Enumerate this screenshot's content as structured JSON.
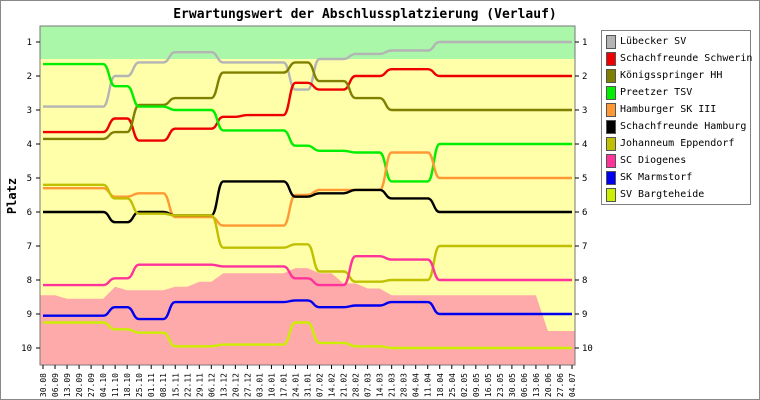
{
  "chart_data": {
    "type": "line",
    "title": "Erwartungswert der Abschlussplatzierung (Verlauf)",
    "ylabel": "Platz",
    "xlabel": "",
    "ylim": [
      1,
      10
    ],
    "y_inverted": true,
    "y_ticks": [
      "1",
      "2",
      "3",
      "4",
      "5",
      "6",
      "7",
      "8",
      "9",
      "10"
    ],
    "x": [
      "30.08",
      "06.09",
      "13.09",
      "20.09",
      "27.09",
      "04.10",
      "11.10",
      "18.10",
      "25.10",
      "01.11",
      "08.11",
      "15.11",
      "22.11",
      "29.11",
      "06.12",
      "13.12",
      "20.12",
      "27.12",
      "03.01",
      "10.01",
      "17.01",
      "24.01",
      "31.01",
      "07.02",
      "14.02",
      "21.02",
      "28.02",
      "07.03",
      "14.03",
      "21.03",
      "28.03",
      "04.04",
      "11.04",
      "18.04",
      "25.04",
      "02.05",
      "09.05",
      "16.05",
      "23.05",
      "30.05",
      "06.06",
      "13.06",
      "20.06",
      "27.06",
      "04.07"
    ],
    "bands": {
      "green_zone": {
        "from": 1,
        "to": 1.5,
        "color": "#aaf7aa"
      },
      "yellow_zone_color": "#ffffaa",
      "red_zone_color": "#ffaaaa",
      "red_zone_top": [
        8.45,
        8.45,
        8.55,
        8.55,
        8.55,
        8.55,
        8.2,
        8.3,
        8.3,
        8.3,
        8.3,
        8.2,
        8.2,
        8.05,
        8.05,
        7.8,
        7.8,
        7.8,
        7.8,
        7.8,
        7.8,
        7.65,
        7.65,
        7.8,
        7.8,
        8.1,
        8.1,
        8.25,
        8.25,
        8.45,
        8.45,
        8.45,
        8.45,
        8.45,
        8.45,
        8.45,
        8.45,
        8.45,
        8.45,
        8.45,
        8.45,
        8.45,
        9.5,
        9.5,
        9.5
      ]
    },
    "series": [
      {
        "name": "Lübecker SV",
        "color": "#b4b4b4",
        "values": [
          2.9,
          2.9,
          2.9,
          2.9,
          2.9,
          2.9,
          2.0,
          2.0,
          1.6,
          1.6,
          1.6,
          1.3,
          1.3,
          1.3,
          1.3,
          1.6,
          1.6,
          1.6,
          1.6,
          1.6,
          1.6,
          2.4,
          2.4,
          1.5,
          1.5,
          1.5,
          1.35,
          1.35,
          1.35,
          1.25,
          1.25,
          1.25,
          1.25,
          1.0,
          1.0,
          1.0,
          1.0,
          1.0,
          1.0,
          1.0,
          1.0,
          1.0,
          1.0,
          1.0,
          1.0
        ]
      },
      {
        "name": "Schachfreunde Schwerin",
        "color": "#ee0000",
        "values": [
          3.65,
          3.65,
          3.65,
          3.65,
          3.65,
          3.65,
          3.25,
          3.25,
          3.9,
          3.9,
          3.9,
          3.55,
          3.55,
          3.55,
          3.55,
          3.2,
          3.2,
          3.15,
          3.15,
          3.15,
          3.15,
          2.2,
          2.2,
          2.4,
          2.4,
          2.4,
          2.0,
          2.0,
          2.0,
          1.8,
          1.8,
          1.8,
          1.8,
          2.0,
          2.0,
          2.0,
          2.0,
          2.0,
          2.0,
          2.0,
          2.0,
          2.0,
          2.0,
          2.0,
          2.0
        ]
      },
      {
        "name": "Königsspringer HH",
        "color": "#808000",
        "values": [
          3.85,
          3.85,
          3.85,
          3.85,
          3.85,
          3.85,
          3.65,
          3.65,
          2.85,
          2.85,
          2.85,
          2.65,
          2.65,
          2.65,
          2.65,
          1.9,
          1.9,
          1.9,
          1.9,
          1.9,
          1.9,
          1.6,
          1.6,
          2.15,
          2.15,
          2.15,
          2.65,
          2.65,
          2.65,
          3.0,
          3.0,
          3.0,
          3.0,
          3.0,
          3.0,
          3.0,
          3.0,
          3.0,
          3.0,
          3.0,
          3.0,
          3.0,
          3.0,
          3.0,
          3.0
        ]
      },
      {
        "name": "Preetzer TSV",
        "color": "#00ee00",
        "values": [
          1.65,
          1.65,
          1.65,
          1.65,
          1.65,
          1.65,
          2.3,
          2.3,
          2.9,
          2.9,
          2.9,
          3.0,
          3.0,
          3.0,
          3.0,
          3.6,
          3.6,
          3.6,
          3.6,
          3.6,
          3.6,
          4.05,
          4.05,
          4.2,
          4.2,
          4.2,
          4.25,
          4.25,
          4.25,
          5.1,
          5.1,
          5.1,
          5.1,
          4.0,
          4.0,
          4.0,
          4.0,
          4.0,
          4.0,
          4.0,
          4.0,
          4.0,
          4.0,
          4.0,
          4.0
        ]
      },
      {
        "name": "Hamburger SK III",
        "color": "#ff9933",
        "values": [
          5.3,
          5.3,
          5.3,
          5.3,
          5.3,
          5.3,
          5.55,
          5.55,
          5.45,
          5.45,
          5.45,
          6.15,
          6.15,
          6.15,
          6.15,
          6.4,
          6.4,
          6.4,
          6.4,
          6.4,
          6.4,
          5.5,
          5.5,
          5.35,
          5.35,
          5.35,
          5.35,
          5.35,
          5.35,
          4.25,
          4.25,
          4.25,
          4.25,
          5.0,
          5.0,
          5.0,
          5.0,
          5.0,
          5.0,
          5.0,
          5.0,
          5.0,
          5.0,
          5.0,
          5.0
        ]
      },
      {
        "name": "Schachfreunde Hamburg",
        "color": "#000000",
        "values": [
          6.0,
          6.0,
          6.0,
          6.0,
          6.0,
          6.0,
          6.3,
          6.3,
          6.0,
          6.0,
          6.0,
          6.1,
          6.1,
          6.1,
          6.1,
          5.1,
          5.1,
          5.1,
          5.1,
          5.1,
          5.1,
          5.55,
          5.55,
          5.45,
          5.45,
          5.45,
          5.35,
          5.35,
          5.35,
          5.6,
          5.6,
          5.6,
          5.6,
          6.0,
          6.0,
          6.0,
          6.0,
          6.0,
          6.0,
          6.0,
          6.0,
          6.0,
          6.0,
          6.0,
          6.0
        ]
      },
      {
        "name": "Johanneum Eppendorf",
        "color": "#c0c000",
        "values": [
          5.2,
          5.2,
          5.2,
          5.2,
          5.2,
          5.2,
          5.6,
          5.6,
          6.05,
          6.05,
          6.05,
          6.1,
          6.1,
          6.1,
          6.1,
          7.05,
          7.05,
          7.05,
          7.05,
          7.05,
          7.05,
          6.95,
          6.95,
          7.75,
          7.75,
          7.75,
          8.05,
          8.05,
          8.05,
          8.0,
          8.0,
          8.0,
          8.0,
          7.0,
          7.0,
          7.0,
          7.0,
          7.0,
          7.0,
          7.0,
          7.0,
          7.0,
          7.0,
          7.0,
          7.0
        ]
      },
      {
        "name": "SC Diogenes",
        "color": "#ff3399",
        "values": [
          8.15,
          8.15,
          8.15,
          8.15,
          8.15,
          8.15,
          7.95,
          7.95,
          7.55,
          7.55,
          7.55,
          7.55,
          7.55,
          7.55,
          7.55,
          7.6,
          7.6,
          7.6,
          7.6,
          7.6,
          7.6,
          7.95,
          7.95,
          8.15,
          8.15,
          8.15,
          7.3,
          7.3,
          7.3,
          7.4,
          7.4,
          7.4,
          7.4,
          8.0,
          8.0,
          8.0,
          8.0,
          8.0,
          8.0,
          8.0,
          8.0,
          8.0,
          8.0,
          8.0,
          8.0
        ]
      },
      {
        "name": "SK Marmstorf",
        "color": "#0000ee",
        "values": [
          9.05,
          9.05,
          9.05,
          9.05,
          9.05,
          9.05,
          8.8,
          8.8,
          9.15,
          9.15,
          9.15,
          8.65,
          8.65,
          8.65,
          8.65,
          8.65,
          8.65,
          8.65,
          8.65,
          8.65,
          8.65,
          8.6,
          8.6,
          8.8,
          8.8,
          8.8,
          8.75,
          8.75,
          8.75,
          8.65,
          8.65,
          8.65,
          8.65,
          9.0,
          9.0,
          9.0,
          9.0,
          9.0,
          9.0,
          9.0,
          9.0,
          9.0,
          9.0,
          9.0,
          9.0
        ]
      },
      {
        "name": "SV Bargteheide",
        "color": "#ccee00",
        "values": [
          9.25,
          9.25,
          9.25,
          9.25,
          9.25,
          9.25,
          9.45,
          9.45,
          9.55,
          9.55,
          9.55,
          9.95,
          9.95,
          9.95,
          9.95,
          9.9,
          9.9,
          9.9,
          9.9,
          9.9,
          9.9,
          9.25,
          9.25,
          9.85,
          9.85,
          9.85,
          9.95,
          9.95,
          9.95,
          10.0,
          10.0,
          10.0,
          10.0,
          10.0,
          10.0,
          10.0,
          10.0,
          10.0,
          10.0,
          10.0,
          10.0,
          10.0,
          10.0,
          10.0,
          10.0
        ]
      }
    ]
  }
}
